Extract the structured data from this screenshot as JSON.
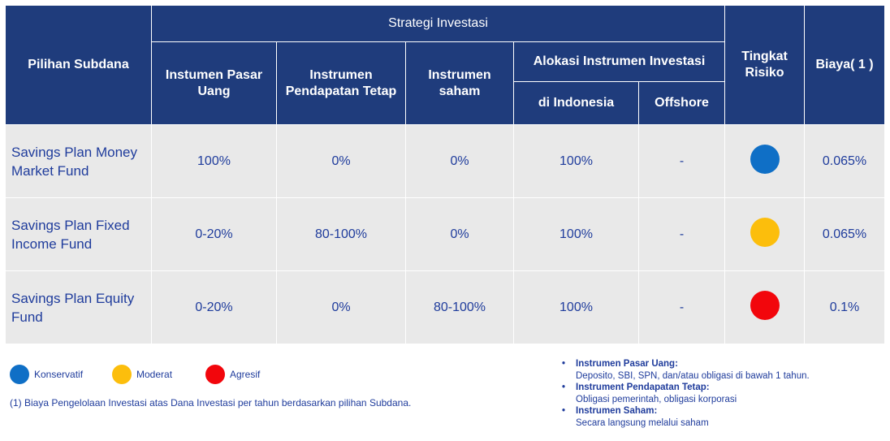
{
  "table": {
    "headers": {
      "fund": "Pilihan Subdana",
      "strategy": "Strategi Investasi",
      "money_market": "Instumen Pasar Uang",
      "fixed_income": "Instrumen Pendapatan Tetap",
      "equity": "Instrumen saham",
      "allocation": "Alokasi Instrumen Investasi",
      "indonesia": "di Indonesia",
      "offshore": "Offshore",
      "risk": "Tingkat Risiko",
      "cost": "Biaya( 1 )"
    },
    "rows": [
      {
        "fund": "Savings Plan Money Market Fund",
        "money_market": "100%",
        "fixed_income": "0%",
        "equity": "0%",
        "indonesia": "100%",
        "offshore": "-",
        "risk_color": "#0f6fc6",
        "cost": "0.065%"
      },
      {
        "fund": "Savings Plan Fixed Income Fund",
        "money_market": "0-20%",
        "fixed_income": "80-100%",
        "equity": "0%",
        "indonesia": "100%",
        "offshore": "-",
        "risk_color": "#fcbe0c",
        "cost": "0.065%"
      },
      {
        "fund": "Savings Plan Equity Fund",
        "money_market": "0-20%",
        "fixed_income": "0%",
        "equity": "80-100%",
        "indonesia": "100%",
        "offshore": "-",
        "risk_color": "#f2060c",
        "cost": "0.1%"
      }
    ]
  },
  "legend": {
    "conservative": {
      "label": "Konservatif",
      "color": "#0f6fc6"
    },
    "moderate": {
      "label": "Moderat",
      "color": "#fcbe0c"
    },
    "aggressive": {
      "label": "Agresif",
      "color": "#f2060c"
    }
  },
  "footnote": "(1) Biaya Pengelolaan Investasi atas Dana Investasi per tahun berdasarkan pilihan Subdana.",
  "definitions": [
    {
      "title": "Instrumen Pasar Uang:",
      "desc": "Deposito, SBI, SPN, dan/atau obligasi di bawah 1 tahun."
    },
    {
      "title": "Instrument Pendapatan Tetap:",
      "desc": "Obligasi pemerintah, obligasi korporasi"
    },
    {
      "title": "Instrumen Saham:",
      "desc": "Secara langsung melalui saham"
    }
  ],
  "colors": {
    "header_bg": "#1f3c7c",
    "cell_bg": "#e9e9e9",
    "text": "#1f3c9c"
  }
}
